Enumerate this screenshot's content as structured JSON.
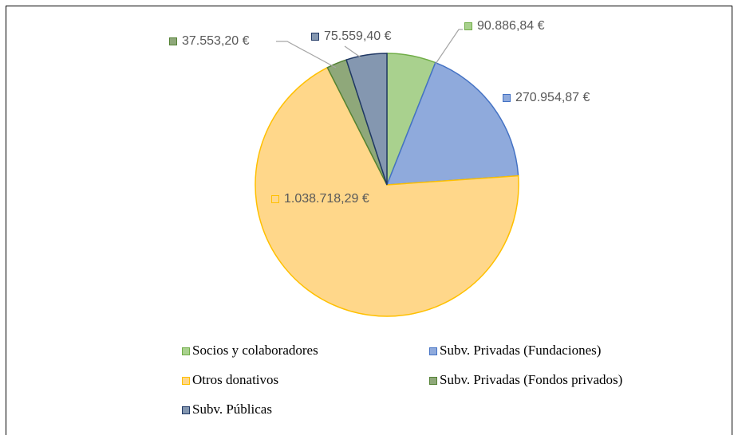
{
  "chart_data": {
    "type": "pie",
    "categories": [
      "Socios y colaboradores",
      "Subv. Privadas (Fundaciones)",
      "Otros donativos",
      "Subv. Privadas (Fondos privados)",
      "Subv. Públicas"
    ],
    "values": [
      90886.84,
      270954.87,
      1038718.29,
      37553.2,
      75559.4
    ],
    "value_labels": [
      "90.886,84 €",
      "270.954,87 €",
      "1.038.718,29 €",
      "37.553,20 €",
      "75.559,40 €"
    ],
    "colors": [
      "#a9d18e",
      "#8faadc",
      "#ffd78a",
      "#8fa87a",
      "#8497b0"
    ],
    "edge_colors": [
      "#70ad47",
      "#4472c4",
      "#ffc000",
      "#548235",
      "#203864"
    ],
    "legend": "bottom"
  }
}
